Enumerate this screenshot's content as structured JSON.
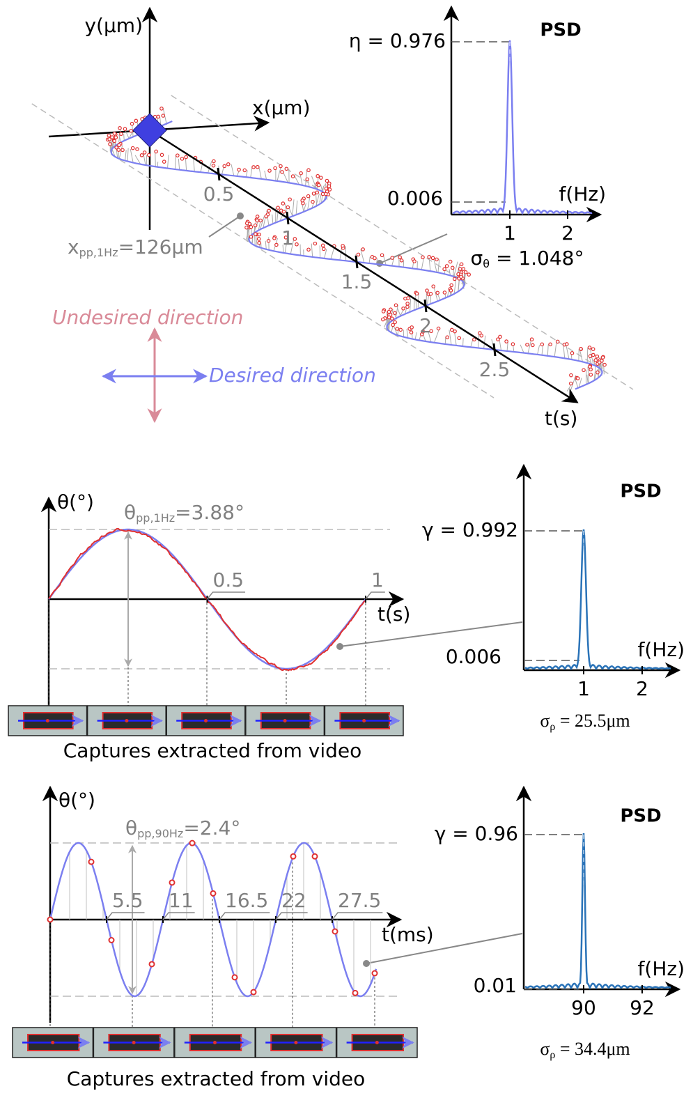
{
  "panel_a": {
    "y_axis_label": "y(μm)",
    "x_axis_label": "x(μm)",
    "t_axis_label": "t(s)",
    "t_ticks": [
      0.5,
      1,
      1.5,
      2,
      2.5
    ],
    "amplitude": {
      "symbol": "x",
      "subscript": "pp,1Hz",
      "value": "=126μm"
    },
    "undesired_label": "Undesired direction",
    "desired_label": "Desired direction",
    "psd": {
      "title": "PSD",
      "peak_label": "η = 0.976",
      "floor_label": "0.006",
      "x_axis_label": "f(Hz)",
      "x_ticks": [
        1,
        2
      ],
      "sigma": {
        "symbol": "σ",
        "subscript": "θ",
        "value": " = 1.048°"
      }
    }
  },
  "panel_b": {
    "y_axis_label": "θ(°)",
    "t_axis_label": "t(s)",
    "t_ticks": [
      0.5,
      1
    ],
    "amplitude": {
      "symbol": "θ",
      "subscript": "pp,1Hz",
      "value": "=3.88°"
    },
    "caption": "Captures extracted from video",
    "psd": {
      "title": "PSD",
      "peak_label": "γ = 0.992",
      "floor_label": "0.006",
      "x_axis_label": "f(Hz)",
      "x_ticks": [
        1,
        2
      ],
      "sigma": {
        "symbol": "σ",
        "subscript": "ρ",
        "value": " = 25.5μm"
      }
    }
  },
  "panel_c": {
    "y_axis_label": "θ(°)",
    "t_axis_label": "t(ms)",
    "t_ticks": [
      5.5,
      11,
      16.5,
      22,
      27.5
    ],
    "amplitude": {
      "symbol": "θ",
      "subscript": "pp,90Hz",
      "value": "=2.4°"
    },
    "caption": "Captures extracted from video",
    "psd": {
      "title": "PSD",
      "peak_label": "γ = 0.96",
      "floor_label": "0.01",
      "x_axis_label": "f(Hz)",
      "x_ticks": [
        90,
        92
      ],
      "sigma": {
        "symbol": "σ",
        "subscript": "ρ",
        "value": " = 34.4μm"
      }
    }
  }
}
